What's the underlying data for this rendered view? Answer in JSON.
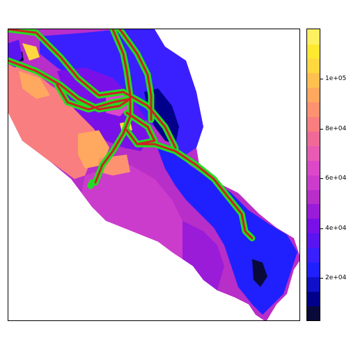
{
  "colorbar": {
    "colors": [
      "#0a0a3a",
      "#00008a",
      "#1010c8",
      "#2020ff",
      "#3a20ff",
      "#5a14f0",
      "#7a10e8",
      "#9a1cd8",
      "#b82ec8",
      "#cc3ccc",
      "#dc48c8",
      "#e85ab4",
      "#f06a98",
      "#f87e80",
      "#fc9270",
      "#ffa860",
      "#ffc050",
      "#ffd840",
      "#ffe830",
      "#fff060"
    ],
    "ticks": [
      {
        "label": "2e+04",
        "value": 20000
      },
      {
        "label": "4e+04",
        "value": 40000
      },
      {
        "label": "6e+04",
        "value": 60000
      },
      {
        "label": "8e+04",
        "value": 80000
      },
      {
        "label": "1e+05",
        "value": 100000
      }
    ],
    "range": [
      3000,
      120000
    ]
  },
  "map": {
    "region_colors": {
      "northwest_band": "#f87e80",
      "central_magenta": "#cc3ccc",
      "central_purple": "#b82ec8",
      "southeast_blue": "#2020ff",
      "northeast_blue": "#3a20ff",
      "dark_core": "#00008a",
      "orange_patch": "#ffa860",
      "yellow_patch": "#ffd840"
    },
    "roads": {
      "outer_color": "#22dd22",
      "inner_color": "#cc2222"
    }
  }
}
